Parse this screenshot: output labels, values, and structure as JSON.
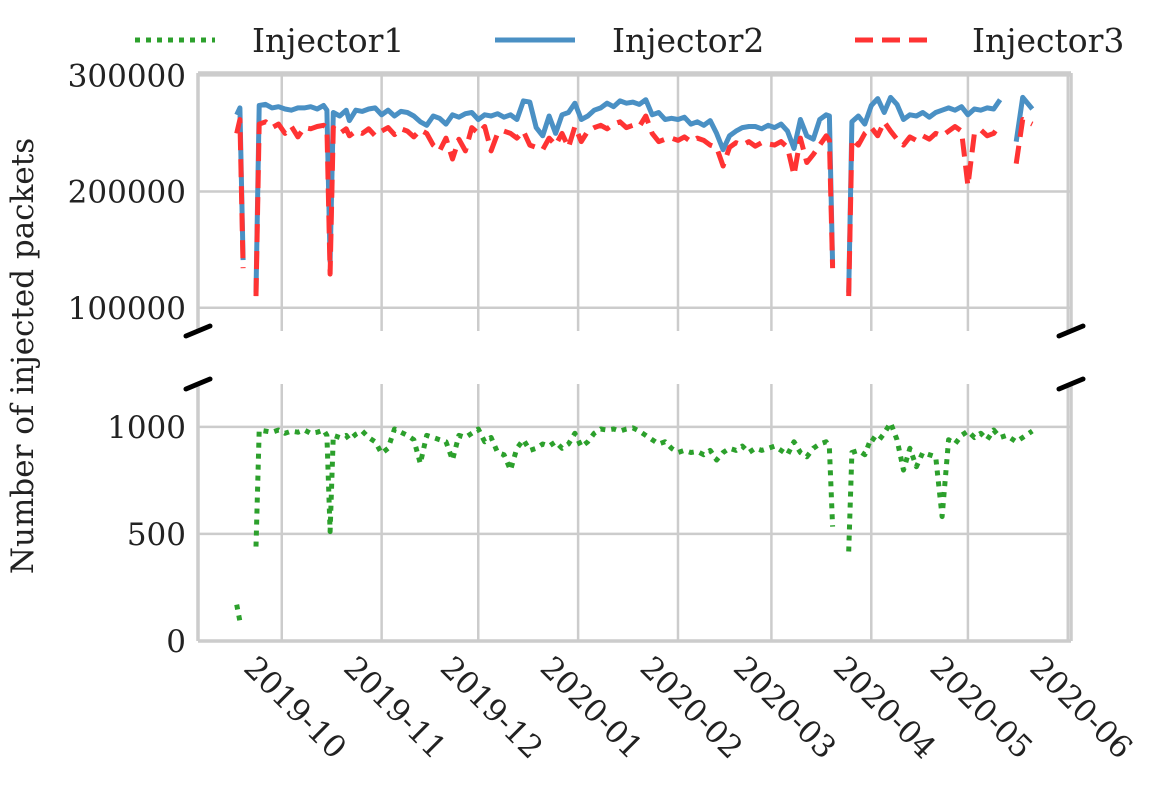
{
  "chart_data": {
    "type": "line",
    "ylabel": "Number of injected packets",
    "xlim": [
      "2019-09-05",
      "2020-06-02"
    ],
    "x_ticks": [
      "2019-10-01",
      "2019-11-01",
      "2019-12-01",
      "2020-01-01",
      "2020-02-01",
      "2020-03-01",
      "2020-04-01",
      "2020-05-01",
      "2020-06-01"
    ],
    "x_tick_labels": [
      "2019-10",
      "2019-11",
      "2019-12",
      "2020-01",
      "2020-02",
      "2020-03",
      "2020-04",
      "2020-05",
      "2020-06"
    ],
    "grid": true,
    "legend_placement": "top",
    "broken_y_axis": true,
    "panels": {
      "top": {
        "ylim": [
          80000,
          302000
        ],
        "yticks": [
          100000,
          200000,
          300000
        ],
        "ytick_labels": [
          "100000",
          "200000",
          "300000"
        ],
        "series": [
          "Injector2",
          "Injector3"
        ]
      },
      "bottom": {
        "ylim": [
          0,
          1200
        ],
        "yticks": [
          0,
          500,
          1000
        ],
        "ytick_labels": [
          "0",
          "500",
          "1000"
        ],
        "series": [
          "Injector1"
        ]
      }
    },
    "x": [
      "2019-09-17",
      "2019-09-18",
      "2019-09-19",
      "2019-09-21",
      "2019-09-23",
      "2019-09-24",
      "2019-09-26",
      "2019-09-28",
      "2019-09-30",
      "2019-10-02",
      "2019-10-04",
      "2019-10-06",
      "2019-10-08",
      "2019-10-10",
      "2019-10-12",
      "2019-10-14",
      "2019-10-15",
      "2019-10-16",
      "2019-10-17",
      "2019-10-19",
      "2019-10-21",
      "2019-10-22",
      "2019-10-24",
      "2019-10-26",
      "2019-10-28",
      "2019-10-30",
      "2019-11-01",
      "2019-11-03",
      "2019-11-05",
      "2019-11-07",
      "2019-11-09",
      "2019-11-11",
      "2019-11-13",
      "2019-11-15",
      "2019-11-17",
      "2019-11-19",
      "2019-11-21",
      "2019-11-23",
      "2019-11-25",
      "2019-11-27",
      "2019-11-29",
      "2019-12-01",
      "2019-12-03",
      "2019-12-05",
      "2019-12-07",
      "2019-12-09",
      "2019-12-11",
      "2019-12-13",
      "2019-12-15",
      "2019-12-17",
      "2019-12-19",
      "2019-12-21",
      "2019-12-23",
      "2019-12-25",
      "2019-12-27",
      "2019-12-29",
      "2019-12-31",
      "2020-01-02",
      "2020-01-04",
      "2020-01-06",
      "2020-01-08",
      "2020-01-10",
      "2020-01-12",
      "2020-01-14",
      "2020-01-16",
      "2020-01-18",
      "2020-01-20",
      "2020-01-22",
      "2020-01-24",
      "2020-01-26",
      "2020-01-28",
      "2020-01-30",
      "2020-02-01",
      "2020-02-03",
      "2020-02-05",
      "2020-02-07",
      "2020-02-09",
      "2020-02-11",
      "2020-02-13",
      "2020-02-15",
      "2020-02-17",
      "2020-02-19",
      "2020-02-21",
      "2020-02-23",
      "2020-02-25",
      "2020-02-27",
      "2020-02-29",
      "2020-03-02",
      "2020-03-04",
      "2020-03-06",
      "2020-03-08",
      "2020-03-10",
      "2020-03-12",
      "2020-03-14",
      "2020-03-16",
      "2020-03-18",
      "2020-03-19",
      "2020-03-20",
      "2020-03-22",
      "2020-03-25",
      "2020-03-26",
      "2020-03-28",
      "2020-03-30",
      "2020-04-01",
      "2020-04-03",
      "2020-04-05",
      "2020-04-07",
      "2020-04-09",
      "2020-04-11",
      "2020-04-13",
      "2020-04-15",
      "2020-04-17",
      "2020-04-19",
      "2020-04-21",
      "2020-04-23",
      "2020-04-25",
      "2020-04-27",
      "2020-04-29",
      "2020-05-01",
      "2020-05-03",
      "2020-05-05",
      "2020-05-07",
      "2020-05-09",
      "2020-05-11",
      "2020-05-13",
      "2020-05-16",
      "2020-05-18",
      "2020-05-21"
    ],
    "series": [
      {
        "name": "Injector1",
        "color": "#2ca02c",
        "style": "dotted",
        "panel": "bottom",
        "values": [
          170,
          92,
          null,
          null,
          441,
          985,
          980,
          975,
          985,
          970,
          980,
          975,
          985,
          970,
          975,
          985,
          960,
          511,
          960,
          950,
          960,
          940,
          965,
          980,
          950,
          930,
          876,
          900,
          990,
          975,
          960,
          940,
          829,
          960,
          950,
          940,
          930,
          845,
          960,
          950,
          970,
          990,
          930,
          950,
          880,
          870,
          798,
          900,
          940,
          890,
          900,
          920,
          910,
          930,
          900,
          920,
          970,
          907,
          930,
          970,
          990,
          985,
          990,
          980,
          990,
          995,
          980,
          960,
          940,
          920,
          930,
          900,
          880,
          890,
          880,
          885,
          870,
          890,
          845,
          880,
          900,
          890,
          910,
          880,
          900,
          890,
          900,
          910,
          890,
          870,
          930,
          880,
          860,
          900,
          920,
          930,
          900,
          534,
          null,
          418,
          880,
          890,
          870,
          950,
          930,
          970,
          1019,
          940,
          798,
          900,
          814,
          880,
          870,
          860,
          581,
          940,
          920,
          960,
          980,
          950,
          970,
          940,
          985,
          950,
          960,
          930,
          950,
          980
        ]
      },
      {
        "name": "Injector2",
        "color": "#4a90c4",
        "style": "solid",
        "panel": "top",
        "values": [
          266000,
          272000,
          141000,
          null,
          113000,
          274000,
          275000,
          272000,
          273000,
          271000,
          270000,
          272000,
          272000,
          273000,
          271000,
          274000,
          270000,
          140000,
          268000,
          265000,
          270000,
          261000,
          270000,
          269000,
          271000,
          272000,
          266000,
          270000,
          265000,
          269000,
          268000,
          265000,
          260000,
          257000,
          265000,
          263000,
          258000,
          266000,
          264000,
          267000,
          268000,
          262000,
          266000,
          265000,
          267000,
          264000,
          266000,
          262000,
          278000,
          277000,
          255000,
          248000,
          265000,
          250000,
          266000,
          268000,
          276000,
          262000,
          265000,
          270000,
          272000,
          276000,
          273000,
          278000,
          276000,
          277000,
          275000,
          279000,
          266000,
          268000,
          262000,
          263000,
          262000,
          264000,
          258000,
          260000,
          257000,
          261000,
          250000,
          236000,
          248000,
          252000,
          255000,
          256000,
          256000,
          254000,
          257000,
          255000,
          258000,
          252000,
          237000,
          262000,
          248000,
          245000,
          262000,
          266000,
          265000,
          137000,
          null,
          113000,
          260000,
          265000,
          258000,
          274000,
          280000,
          268000,
          281000,
          275000,
          262000,
          266000,
          265000,
          268000,
          264000,
          268000,
          270000,
          272000,
          270000,
          273000,
          266000,
          271000,
          270000,
          272000,
          271000,
          279000,
          null,
          243000,
          281000,
          271000
        ]
      },
      {
        "name": "Injector3",
        "color": "#ff3333",
        "style": "dashed",
        "panel": "top",
        "values": [
          250000,
          262000,
          134000,
          null,
          110000,
          258000,
          260000,
          255000,
          258000,
          250000,
          256000,
          247000,
          255000,
          254000,
          256000,
          257000,
          255000,
          129000,
          255000,
          250000,
          254000,
          248000,
          252000,
          250000,
          254000,
          248000,
          252000,
          255000,
          249000,
          254000,
          252000,
          247000,
          253000,
          250000,
          240000,
          235000,
          246000,
          228000,
          245000,
          235000,
          255000,
          250000,
          256000,
          235000,
          250000,
          252000,
          250000,
          246000,
          252000,
          240000,
          238000,
          236000,
          246000,
          240000,
          250000,
          238000,
          256000,
          243000,
          252000,
          255000,
          257000,
          254000,
          258000,
          260000,
          255000,
          257000,
          256000,
          265000,
          250000,
          243000,
          245000,
          246000,
          244000,
          247000,
          243000,
          246000,
          244000,
          240000,
          238000,
          222000,
          238000,
          242000,
          240000,
          243000,
          239000,
          242000,
          241000,
          240000,
          243000,
          238000,
          214000,
          246000,
          225000,
          232000,
          240000,
          248000,
          244000,
          134000,
          null,
          110000,
          245000,
          240000,
          250000,
          255000,
          248000,
          260000,
          252000,
          245000,
          240000,
          247000,
          244000,
          248000,
          245000,
          250000,
          248000,
          252000,
          256000,
          252000,
          205000,
          250000,
          253000,
          248000,
          250000,
          258000,
          null,
          224000,
          262000,
          258000
        ]
      }
    ]
  }
}
